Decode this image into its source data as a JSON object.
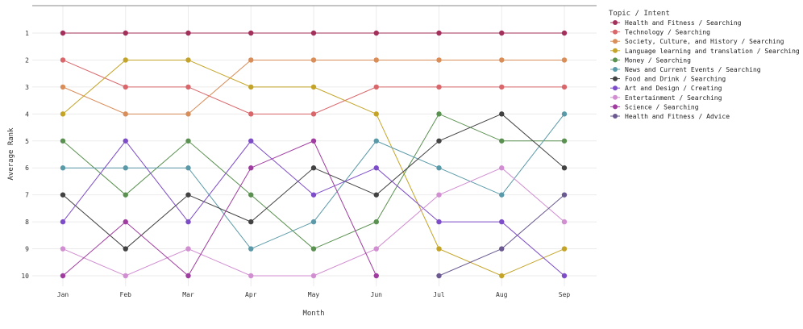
{
  "chart_data": {
    "type": "line",
    "title": "",
    "xlabel": "Month",
    "ylabel": "Average Rank",
    "x": [
      "Jan",
      "Feb",
      "Mar",
      "Apr",
      "May",
      "Jun",
      "Jul",
      "Aug",
      "Sep"
    ],
    "y_ticks": [
      "1",
      "2",
      "3",
      "4",
      "5",
      "6",
      "7",
      "8",
      "9",
      "10"
    ],
    "ylim": [
      10,
      1
    ],
    "y_reversed": true,
    "grid": true,
    "legend_title": "Topic / Intent",
    "legend_position": "right",
    "series": [
      {
        "name": "Health and Fitness / Searching",
        "color": "#a3305a",
        "values": [
          1,
          1,
          1,
          1,
          1,
          1,
          1,
          1,
          1
        ]
      },
      {
        "name": "Technology / Searching",
        "color": "#d9666a",
        "values": [
          2,
          3,
          3,
          4,
          4,
          3,
          3,
          3,
          3
        ]
      },
      {
        "name": "Society, Culture, and History / Searching",
        "color": "#d98d58",
        "values": [
          3,
          4,
          4,
          2,
          2,
          2,
          2,
          2,
          2
        ]
      },
      {
        "name": "Language learning and translation / Searching",
        "color": "#c4a428",
        "values": [
          4,
          2,
          2,
          3,
          3,
          4,
          9,
          10,
          9
        ]
      },
      {
        "name": "Money / Searching",
        "color": "#5a9150",
        "values": [
          5,
          7,
          5,
          7,
          9,
          8,
          4,
          5,
          5
        ]
      },
      {
        "name": "News and Current Events / Searching",
        "color": "#5a9aa8",
        "values": [
          6,
          6,
          6,
          9,
          8,
          5,
          6,
          7,
          4
        ]
      },
      {
        "name": "Food and Drink / Searching",
        "color": "#424242",
        "values": [
          7,
          9,
          7,
          8,
          6,
          7,
          5,
          4,
          6
        ]
      },
      {
        "name": "Art and Design / Creating",
        "color": "#7d4cc9",
        "values": [
          8,
          5,
          8,
          5,
          7,
          6,
          8,
          8,
          10
        ]
      },
      {
        "name": "Entertainment / Searching",
        "color": "#d18ed1",
        "values": [
          9,
          10,
          9,
          10,
          10,
          9,
          7,
          6,
          8
        ]
      },
      {
        "name": "Science / Searching",
        "color": "#a03ca0",
        "values": [
          10,
          8,
          10,
          6,
          5,
          10,
          null,
          null,
          null
        ]
      },
      {
        "name": "Health and Fitness / Advice",
        "color": "#6b5a91",
        "values": [
          null,
          null,
          null,
          null,
          null,
          null,
          10,
          9,
          7
        ]
      }
    ]
  }
}
